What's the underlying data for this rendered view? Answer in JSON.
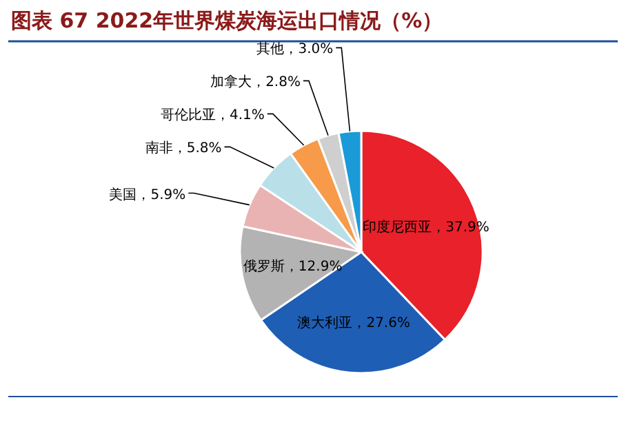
{
  "chart_data": {
    "type": "pie",
    "title": "图表 67  2022年世界煤炭海运出口情况（%）",
    "categories": [
      "印度尼西亚",
      "澳大利亚",
      "俄罗斯",
      "美国",
      "南非",
      "哥伦比亚",
      "加拿大",
      "其他"
    ],
    "values": [
      37.9,
      27.6,
      12.9,
      5.9,
      5.8,
      4.1,
      2.8,
      3.0
    ],
    "value_labels": [
      "37.9%",
      "27.6%",
      "12.9%",
      "5.9%",
      "5.8%",
      "4.1%",
      "2.8%",
      "3.0%"
    ],
    "colors": [
      "#e8212a",
      "#1f5eb5",
      "#b3b3b3",
      "#eab3b3",
      "#b9dfe9",
      "#f79a4a",
      "#cfcfcf",
      "#1a9ad8"
    ]
  }
}
